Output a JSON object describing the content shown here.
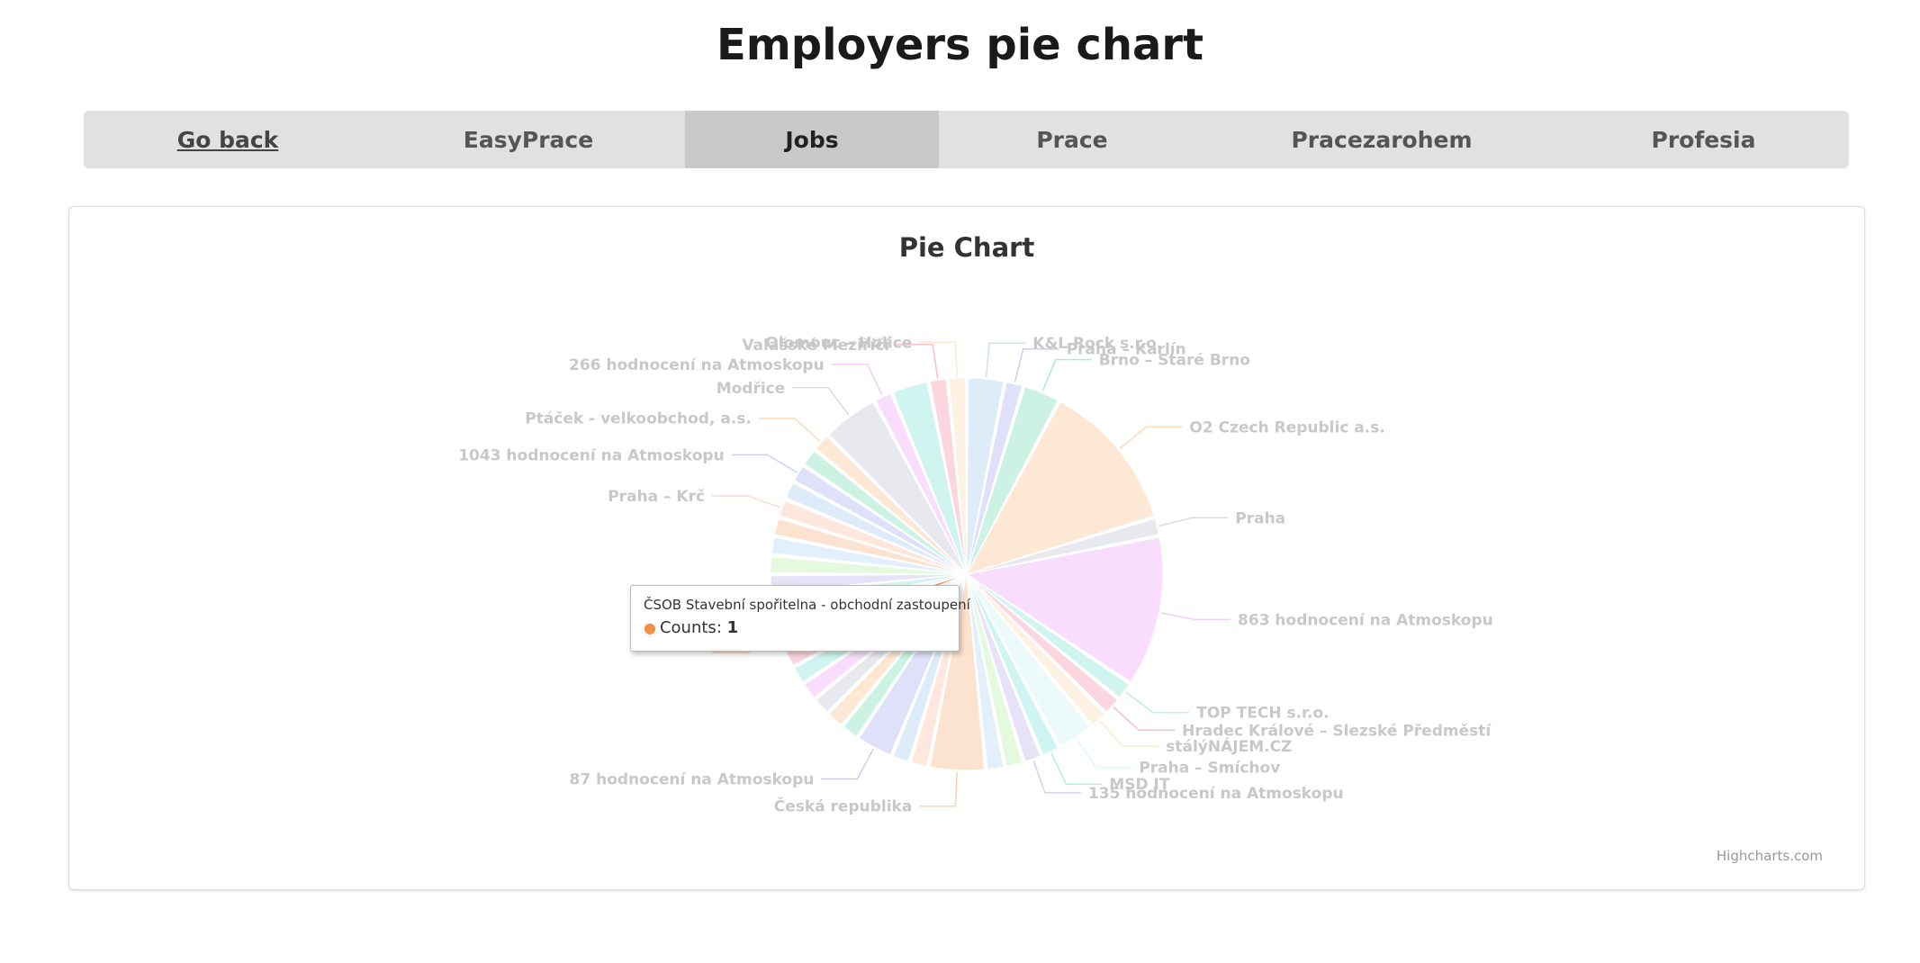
{
  "page": {
    "title": "Employers pie chart"
  },
  "nav": {
    "tabs": [
      {
        "label": "Go back"
      },
      {
        "label": "EasyPrace"
      },
      {
        "label": "Jobs",
        "active": true
      },
      {
        "label": "Prace"
      },
      {
        "label": "Pracezarohem"
      },
      {
        "label": "Profesia"
      }
    ]
  },
  "chart_data": {
    "type": "pie",
    "title": "Pie Chart",
    "series_name": "Counts",
    "credits": "Highcharts.com",
    "slices": [
      {
        "label": "K&L Rock s.r.o.",
        "value": 2
      },
      {
        "label": "Praha – Karlín",
        "value": 1
      },
      {
        "label": "Brno – Staré Brno",
        "value": 2
      },
      {
        "label": "O2 Czech Republic a.s.",
        "value": 8
      },
      {
        "label": "Praha",
        "value": 1
      },
      {
        "label": "863 hodnocení na Atmoskopu",
        "value": 8
      },
      {
        "label": "TOP TECH s.r.o.",
        "value": 1
      },
      {
        "label": "Hradec Králové – Slezské Předměstí",
        "value": 1
      },
      {
        "label": "stálýNÁJEM.CZ",
        "value": 1
      },
      {
        "label": "Praha – Smíchov",
        "value": 2
      },
      {
        "label": "MSD IT",
        "value": 1
      },
      {
        "label": "135 hodnocení na Atmoskopu",
        "value": 1
      },
      {
        "label": "",
        "value": 1
      },
      {
        "label": "",
        "value": 1
      },
      {
        "label": "Česká republika",
        "value": 3
      },
      {
        "label": "",
        "value": 1
      },
      {
        "label": "",
        "value": 1
      },
      {
        "label": "87 hodnocení na Atmoskopu",
        "value": 2
      },
      {
        "label": "",
        "value": 1
      },
      {
        "label": "",
        "value": 1
      },
      {
        "label": "",
        "value": 1
      },
      {
        "label": "",
        "value": 1
      },
      {
        "label": "",
        "value": 1
      },
      {
        "label": "",
        "value": 1
      },
      {
        "label": "ČSOB Stavební spořitelna - obchodní zastoupení",
        "value": 1
      },
      {
        "label": "",
        "value": 1
      },
      {
        "label": "",
        "value": 1
      },
      {
        "label": "",
        "value": 1
      },
      {
        "label": "",
        "value": 1
      },
      {
        "label": "",
        "value": 1
      },
      {
        "label": "",
        "value": 1
      },
      {
        "label": "Praha – Krč",
        "value": 1
      },
      {
        "label": "",
        "value": 1
      },
      {
        "label": "1043 hodnocení na Atmoskopu",
        "value": 1
      },
      {
        "label": "",
        "value": 1
      },
      {
        "label": "Ptáček - velkoobchod, a.s.",
        "value": 1
      },
      {
        "label": "Modřice",
        "value": 3
      },
      {
        "label": "266 hodnocení na Atmoskopu",
        "value": 1
      },
      {
        "label": "",
        "value": 2
      },
      {
        "label": "Valašské Meziříčí",
        "value": 1
      },
      {
        "label": "Olomouc – Holice",
        "value": 1
      }
    ],
    "colors": [
      "#7cb5ec",
      "#8085e9",
      "#2ecc8f",
      "#f7a35c",
      "#a0a8c0",
      "#e47cf5",
      "#45d9c8",
      "#f15c80",
      "#f7c78a",
      "#b6ecec",
      "#3dd9c9",
      "#9b8de0",
      "#90ed7d",
      "#8fc4f5",
      "#f28f43",
      "#ffa07a"
    ],
    "highlighted": {
      "label": "ČSOB Stavební spořitelna - obchodní zastoupení",
      "value": 1,
      "color": "#f28f43"
    }
  },
  "tooltip": {
    "title": "ČSOB Stavební spořitelna - obchodní zastoupení",
    "series_label": "Counts",
    "value": "1"
  }
}
